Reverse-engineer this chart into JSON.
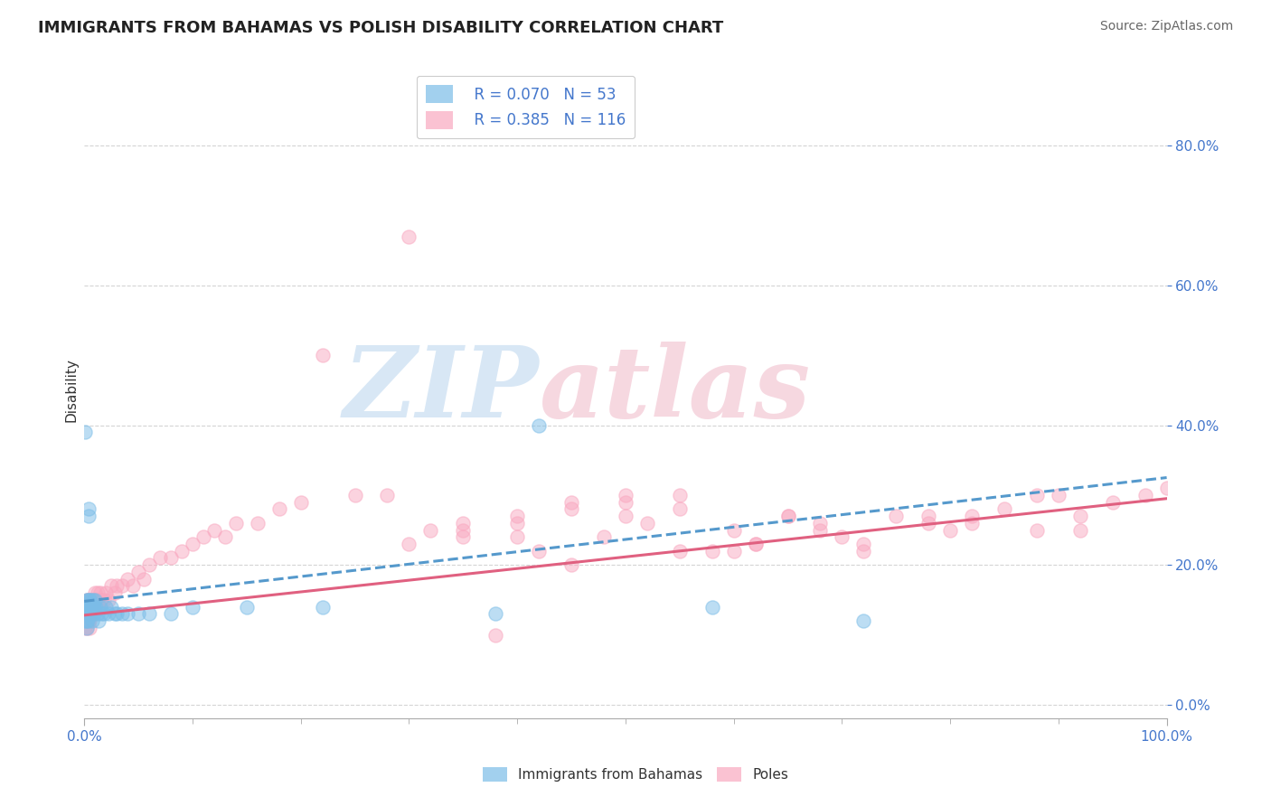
{
  "title": "IMMIGRANTS FROM BAHAMAS VS POLISH DISABILITY CORRELATION CHART",
  "source": "Source: ZipAtlas.com",
  "ylabel": "Disability",
  "series1_name": "Immigrants from Bahamas",
  "series2_name": "Poles",
  "series1_color": "#7bbde8",
  "series2_color": "#f9a8c0",
  "series1_R": 0.07,
  "series1_N": 53,
  "series2_R": 0.385,
  "series2_N": 116,
  "xlim": [
    0.0,
    1.0
  ],
  "ylim": [
    -0.02,
    0.92
  ],
  "yticks": [
    0.0,
    0.2,
    0.4,
    0.6,
    0.8
  ],
  "xticks_positions": [
    0.0,
    1.0
  ],
  "xticks_labels": [
    "0.0%",
    "100.0%"
  ],
  "background_color": "#ffffff",
  "grid_color": "#d0d0d0",
  "line1_color": "#5599cc",
  "line2_color": "#e06080",
  "line1_x0": 0.0,
  "line1_y0": 0.148,
  "line1_x1": 1.0,
  "line1_y1": 0.325,
  "line2_x0": 0.0,
  "line2_y0": 0.128,
  "line2_x1": 1.0,
  "line2_y1": 0.295,
  "s1_x": [
    0.001,
    0.001,
    0.001,
    0.001,
    0.002,
    0.002,
    0.002,
    0.002,
    0.002,
    0.003,
    0.003,
    0.003,
    0.003,
    0.004,
    0.004,
    0.004,
    0.004,
    0.005,
    0.005,
    0.005,
    0.006,
    0.006,
    0.007,
    0.007,
    0.007,
    0.008,
    0.008,
    0.009,
    0.009,
    0.01,
    0.011,
    0.012,
    0.013,
    0.015,
    0.016,
    0.018,
    0.02,
    0.022,
    0.025,
    0.028,
    0.03,
    0.035,
    0.04,
    0.05,
    0.06,
    0.08,
    0.1,
    0.15,
    0.22,
    0.38,
    0.42,
    0.58,
    0.72
  ],
  "s1_y": [
    0.39,
    0.14,
    0.13,
    0.12,
    0.15,
    0.14,
    0.13,
    0.12,
    0.11,
    0.15,
    0.14,
    0.13,
    0.12,
    0.28,
    0.27,
    0.14,
    0.13,
    0.15,
    0.14,
    0.13,
    0.15,
    0.14,
    0.14,
    0.13,
    0.12,
    0.15,
    0.14,
    0.14,
    0.13,
    0.15,
    0.14,
    0.13,
    0.12,
    0.14,
    0.13,
    0.13,
    0.14,
    0.13,
    0.14,
    0.13,
    0.13,
    0.13,
    0.13,
    0.13,
    0.13,
    0.13,
    0.14,
    0.14,
    0.14,
    0.13,
    0.4,
    0.14,
    0.12
  ],
  "s2_x": [
    0.001,
    0.001,
    0.001,
    0.001,
    0.001,
    0.002,
    0.002,
    0.002,
    0.002,
    0.002,
    0.003,
    0.003,
    0.003,
    0.003,
    0.004,
    0.004,
    0.004,
    0.004,
    0.005,
    0.005,
    0.005,
    0.005,
    0.005,
    0.006,
    0.006,
    0.006,
    0.007,
    0.007,
    0.008,
    0.008,
    0.009,
    0.009,
    0.01,
    0.01,
    0.01,
    0.012,
    0.012,
    0.013,
    0.014,
    0.015,
    0.016,
    0.018,
    0.02,
    0.022,
    0.025,
    0.028,
    0.03,
    0.035,
    0.04,
    0.045,
    0.05,
    0.055,
    0.06,
    0.07,
    0.08,
    0.09,
    0.1,
    0.11,
    0.12,
    0.13,
    0.14,
    0.16,
    0.18,
    0.2,
    0.22,
    0.25,
    0.28,
    0.3,
    0.32,
    0.35,
    0.38,
    0.4,
    0.42,
    0.45,
    0.48,
    0.5,
    0.52,
    0.55,
    0.58,
    0.6,
    0.62,
    0.65,
    0.68,
    0.7,
    0.72,
    0.75,
    0.78,
    0.8,
    0.82,
    0.85,
    0.88,
    0.9,
    0.92,
    0.95,
    0.98,
    1.0,
    0.3,
    0.35,
    0.4,
    0.45,
    0.5,
    0.55,
    0.62,
    0.68,
    0.72,
    0.78,
    0.82,
    0.88,
    0.92,
    0.35,
    0.4,
    0.45,
    0.5,
    0.55,
    0.6,
    0.65
  ],
  "s2_y": [
    0.13,
    0.14,
    0.13,
    0.12,
    0.11,
    0.15,
    0.14,
    0.13,
    0.12,
    0.11,
    0.15,
    0.14,
    0.13,
    0.12,
    0.15,
    0.14,
    0.13,
    0.12,
    0.15,
    0.14,
    0.13,
    0.12,
    0.11,
    0.15,
    0.14,
    0.13,
    0.15,
    0.14,
    0.15,
    0.14,
    0.15,
    0.14,
    0.16,
    0.15,
    0.14,
    0.16,
    0.15,
    0.15,
    0.14,
    0.16,
    0.15,
    0.15,
    0.16,
    0.15,
    0.17,
    0.16,
    0.17,
    0.17,
    0.18,
    0.17,
    0.19,
    0.18,
    0.2,
    0.21,
    0.21,
    0.22,
    0.23,
    0.24,
    0.25,
    0.24,
    0.26,
    0.26,
    0.28,
    0.29,
    0.5,
    0.3,
    0.3,
    0.23,
    0.25,
    0.26,
    0.1,
    0.24,
    0.22,
    0.2,
    0.24,
    0.27,
    0.26,
    0.28,
    0.22,
    0.22,
    0.23,
    0.27,
    0.25,
    0.24,
    0.22,
    0.27,
    0.26,
    0.25,
    0.27,
    0.28,
    0.3,
    0.3,
    0.25,
    0.29,
    0.3,
    0.31,
    0.67,
    0.24,
    0.26,
    0.28,
    0.3,
    0.22,
    0.23,
    0.26,
    0.23,
    0.27,
    0.26,
    0.25,
    0.27,
    0.25,
    0.27,
    0.29,
    0.29,
    0.3,
    0.25,
    0.27
  ]
}
